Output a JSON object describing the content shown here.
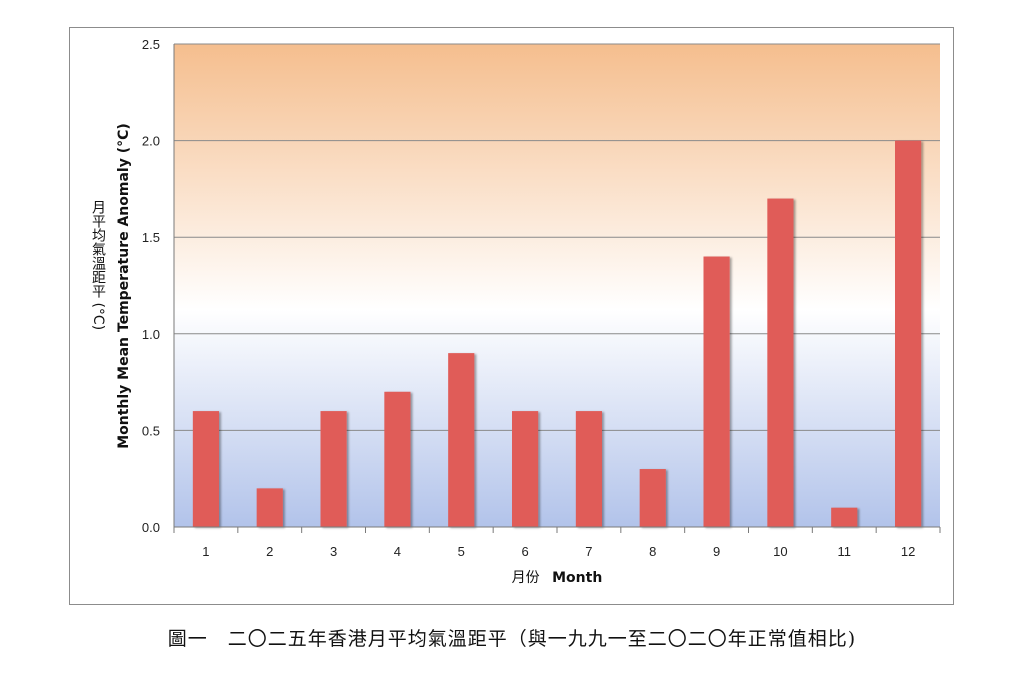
{
  "chart_data": {
    "type": "bar",
    "categories": [
      "1",
      "2",
      "3",
      "4",
      "5",
      "6",
      "7",
      "8",
      "9",
      "10",
      "11",
      "12"
    ],
    "values": [
      0.6,
      0.2,
      0.6,
      0.7,
      0.9,
      0.6,
      0.6,
      0.3,
      1.4,
      1.7,
      0.1,
      2.0
    ],
    "ylim": [
      0,
      2.5
    ],
    "yticks": [
      "0.0",
      "0.5",
      "1.0",
      "1.5",
      "2.0",
      "2.5"
    ],
    "ytick_values": [
      0,
      0.5,
      1.0,
      1.5,
      2.0,
      2.5
    ],
    "xlabel_zh": "月份",
    "xlabel_en": "Month",
    "ylabel_zh": "月平均氣溫距平 (°C)",
    "ylabel_en": "Monthly Mean Temperature Anomaly (°C)",
    "grid": true,
    "legend": "none",
    "bar_color": "#e05c58",
    "background_gradient": [
      "#f5be8e",
      "#ffffff",
      "#b2c3ea"
    ]
  },
  "caption": "圖一　二〇二五年香港月平均氣溫距平（與一九九一至二〇二〇年正常值相比)"
}
